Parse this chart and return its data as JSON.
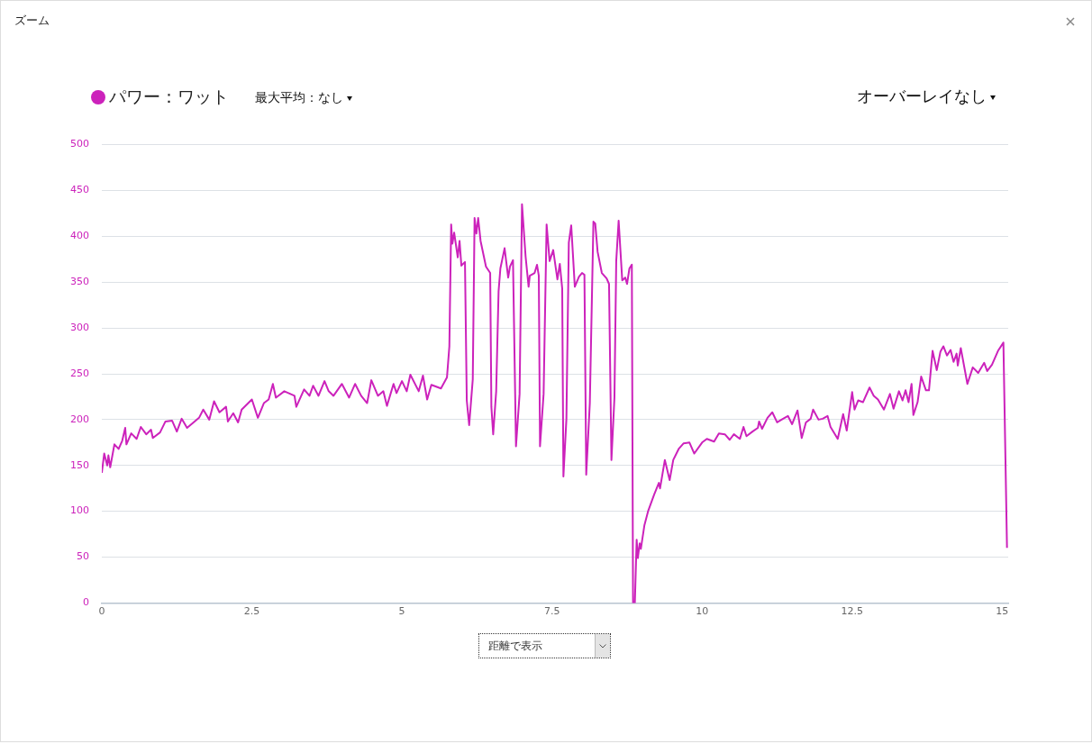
{
  "chart_data": {
    "type": "line",
    "title": "ズーム",
    "annotations": [
      "最大平均：なし",
      "オーバーレイなし",
      "距離で表示"
    ],
    "legend": "top left",
    "grid": "y",
    "marker": "none",
    "line_style": "solid",
    "xlim": [
      0,
      15.1
    ],
    "xticks": [
      0,
      2.5,
      5,
      7.5,
      10,
      12.5,
      15
    ],
    "ylim": [
      0,
      500
    ],
    "yticks": [
      0,
      50,
      100,
      150,
      200,
      250,
      300,
      350,
      400,
      450,
      500
    ],
    "series": [
      {
        "name": "パワー：ワット",
        "color": "#cc22bb",
        "x": [
          0,
          0.04,
          0.09,
          0.11,
          0.14,
          0.21,
          0.28,
          0.34,
          0.39,
          0.41,
          0.49,
          0.58,
          0.65,
          0.74,
          0.82,
          0.85,
          0.97,
          1.06,
          1.17,
          1.25,
          1.33,
          1.42,
          1.51,
          1.62,
          1.69,
          1.79,
          1.87,
          1.96,
          2.07,
          2.1,
          2.19,
          2.27,
          2.33,
          2.5,
          2.6,
          2.7,
          2.78,
          2.85,
          2.9,
          3.04,
          3.21,
          3.24,
          3.37,
          3.46,
          3.52,
          3.61,
          3.71,
          3.78,
          3.86,
          4.0,
          4.12,
          4.22,
          4.32,
          4.42,
          4.49,
          4.6,
          4.69,
          4.75,
          4.86,
          4.91,
          5.0,
          5.08,
          5.14,
          5.28,
          5.35,
          5.42,
          5.49,
          5.65,
          5.75,
          5.79,
          5.82,
          5.84,
          5.87,
          5.93,
          5.96,
          5.99,
          6.05,
          6.08,
          6.12,
          6.18,
          6.21,
          6.24,
          6.27,
          6.31,
          6.4,
          6.47,
          6.49,
          6.52,
          6.57,
          6.61,
          6.64,
          6.71,
          6.77,
          6.8,
          6.85,
          6.9,
          6.96,
          7.0,
          7.06,
          7.11,
          7.13,
          7.21,
          7.25,
          7.28,
          7.3,
          7.36,
          7.41,
          7.46,
          7.52,
          7.59,
          7.63,
          7.67,
          7.69,
          7.74,
          7.78,
          7.82,
          7.88,
          7.95,
          8.0,
          8.04,
          8.07,
          8.13,
          8.19,
          8.22,
          8.26,
          8.33,
          8.41,
          8.45,
          8.49,
          8.54,
          8.57,
          8.61,
          8.67,
          8.72,
          8.75,
          8.79,
          8.83,
          8.85,
          8.88,
          8.91,
          8.93,
          8.96,
          8.98,
          9.04,
          9.1,
          9.2,
          9.28,
          9.3,
          9.38,
          9.46,
          9.52,
          9.61,
          9.69,
          9.79,
          9.87,
          10.0,
          10.08,
          10.2,
          10.28,
          10.38,
          10.46,
          10.53,
          10.63,
          10.69,
          10.74,
          10.84,
          10.93,
          10.95,
          11.0,
          11.09,
          11.17,
          11.25,
          11.35,
          11.43,
          11.5,
          11.59,
          11.66,
          11.73,
          11.81,
          11.85,
          11.94,
          12.01,
          12.09,
          12.14,
          12.26,
          12.35,
          12.41,
          12.5,
          12.54,
          12.6,
          12.68,
          12.79,
          12.86,
          12.93,
          13.03,
          13.13,
          13.19,
          13.28,
          13.34,
          13.39,
          13.44,
          13.49,
          13.52,
          13.59,
          13.65,
          13.73,
          13.78,
          13.84,
          13.91,
          13.97,
          14.02,
          14.08,
          14.14,
          14.19,
          14.24,
          14.26,
          14.31,
          14.42,
          14.51,
          14.6,
          14.7,
          14.75,
          14.83,
          14.93,
          15.02,
          15.08
        ],
        "values": [
          142,
          163,
          150,
          161,
          148,
          173,
          168,
          177,
          191,
          173,
          185,
          179,
          192,
          184,
          189,
          180,
          186,
          198,
          199,
          187,
          201,
          191,
          196,
          202,
          211,
          200,
          220,
          208,
          214,
          198,
          207,
          197,
          211,
          222,
          202,
          218,
          222,
          239,
          224,
          231,
          226,
          214,
          233,
          226,
          237,
          226,
          242,
          231,
          226,
          239,
          224,
          239,
          226,
          218,
          243,
          226,
          231,
          215,
          239,
          229,
          242,
          231,
          249,
          231,
          248,
          222,
          238,
          234,
          246,
          280,
          413,
          392,
          404,
          377,
          395,
          368,
          372,
          221,
          194,
          244,
          420,
          403,
          420,
          395,
          367,
          360,
          214,
          184,
          231,
          340,
          365,
          387,
          355,
          367,
          374,
          171,
          228,
          435,
          378,
          345,
          357,
          360,
          369,
          357,
          171,
          228,
          413,
          373,
          385,
          353,
          370,
          343,
          138,
          201,
          393,
          412,
          345,
          356,
          360,
          358,
          140,
          218,
          416,
          414,
          383,
          360,
          354,
          348,
          156,
          224,
          373,
          417,
          352,
          355,
          348,
          365,
          369,
          0,
          0,
          69,
          49,
          65,
          59,
          85,
          100,
          118,
          131,
          125,
          156,
          134,
          156,
          168,
          174,
          175,
          163,
          175,
          179,
          176,
          185,
          184,
          178,
          184,
          179,
          192,
          182,
          187,
          191,
          198,
          190,
          202,
          208,
          197,
          201,
          204,
          195,
          210,
          180,
          197,
          201,
          211,
          200,
          201,
          204,
          192,
          179,
          206,
          188,
          230,
          211,
          221,
          219,
          235,
          226,
          222,
          211,
          228,
          212,
          231,
          221,
          232,
          219,
          239,
          205,
          219,
          247,
          232,
          232,
          275,
          254,
          274,
          280,
          270,
          276,
          263,
          272,
          259,
          278,
          239,
          257,
          251,
          262,
          253,
          260,
          275,
          284,
          60
        ]
      }
    ]
  }
}
